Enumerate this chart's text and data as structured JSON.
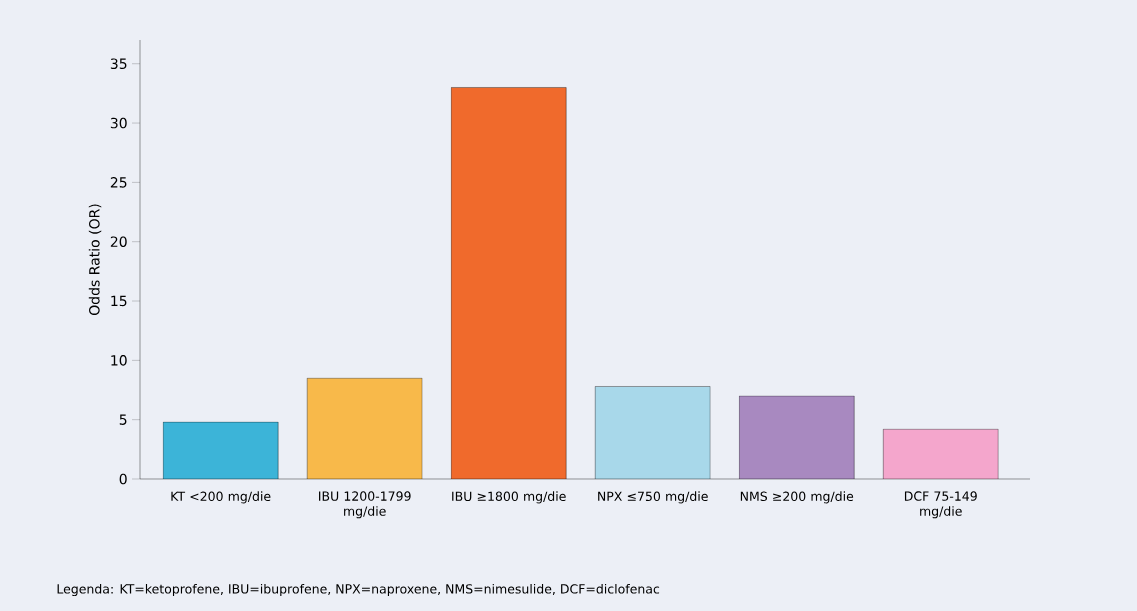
{
  "chart_data": {
    "type": "bar",
    "ylabel": "Odds Ratio (OR)",
    "categories": [
      "KT <200 mg/die",
      "IBU 1200-1799 mg/die",
      "IBU ≥1800 mg/die",
      "NPX ≤750 mg/die",
      "NMS ≥200 mg/die",
      "DCF 75-149 mg/die"
    ],
    "values": [
      4.8,
      8.5,
      33,
      7.8,
      7.0,
      4.2
    ],
    "colors": [
      "#3cb4d8",
      "#f8b94a",
      "#f06a2c",
      "#a8d8ea",
      "#a889c0",
      "#f4a6cc"
    ],
    "ylim": [
      0,
      37
    ],
    "yticks": [
      0,
      5,
      10,
      15,
      20,
      25,
      30,
      35
    ],
    "annotations": [
      "Legenda: KT=ketoprofene, IBU=ibuprofene, NPX=naproxene, NMS=nimesulide, DCF=diclofenac"
    ]
  }
}
